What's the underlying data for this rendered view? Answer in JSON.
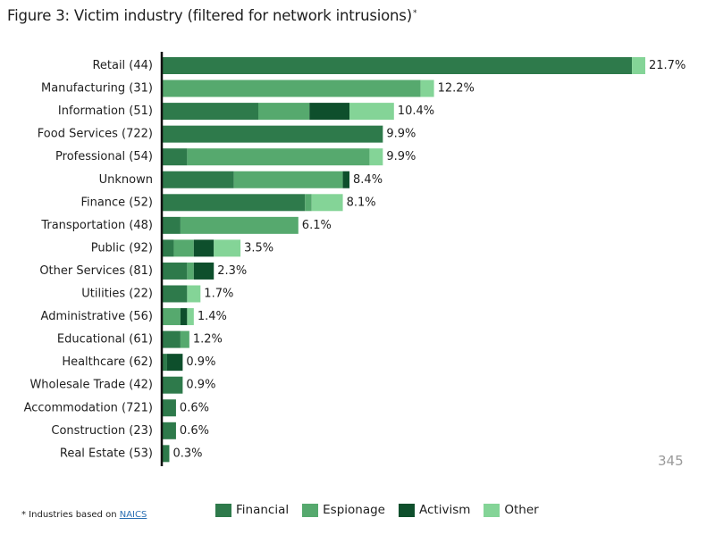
{
  "chart_data": {
    "type": "bar",
    "orientation": "horizontal",
    "stacked": true,
    "title": "Figure 3: Victim industry (filtered for network intrusions)",
    "title_marker": "*",
    "xlabel": "",
    "ylabel": "",
    "xlim": [
      0,
      21.7
    ],
    "grid": false,
    "legend_position": "bottom",
    "colors": {
      "Financial": "#2e7a4b",
      "Espionage": "#56a96e",
      "Activism": "#0e4f2c",
      "Other": "#84d497"
    },
    "categories": [
      "Retail (44)",
      "Manufacturing (31)",
      "Information (51)",
      "Food Services (722)",
      "Professional (54)",
      "Unknown",
      "Finance (52)",
      "Transportation (48)",
      "Public (92)",
      "Other Services (81)",
      "Utilities (22)",
      "Administrative (56)",
      "Educational (61)",
      "Healthcare (62)",
      "Wholesale Trade (42)",
      "Accommodation (721)",
      "Construction (23)",
      "Real Estate (53)"
    ],
    "totals": [
      21.7,
      12.2,
      10.4,
      9.9,
      9.9,
      8.4,
      8.1,
      6.1,
      3.5,
      2.3,
      1.7,
      1.4,
      1.2,
      0.9,
      0.9,
      0.6,
      0.6,
      0.3
    ],
    "total_labels": [
      "21.7%",
      "12.2%",
      "10.4%",
      "9.9%",
      "9.9%",
      "8.4%",
      "8.1%",
      "6.1%",
      "3.5%",
      "2.3%",
      "1.7%",
      "1.4%",
      "1.2%",
      "0.9%",
      "0.9%",
      "0.6%",
      "0.6%",
      "0.3%"
    ],
    "series": [
      {
        "name": "Financial",
        "values": [
          21.1,
          0.0,
          4.3,
          9.9,
          1.1,
          3.2,
          6.4,
          0.8,
          0.5,
          1.1,
          1.1,
          0.0,
          0.8,
          0.2,
          0.9,
          0.6,
          0.6,
          0.3
        ]
      },
      {
        "name": "Espionage",
        "values": [
          0.0,
          11.6,
          2.3,
          0.0,
          8.2,
          4.9,
          0.3,
          5.3,
          0.9,
          0.3,
          0.0,
          0.8,
          0.4,
          0.0,
          0.0,
          0.0,
          0.0,
          0.0
        ]
      },
      {
        "name": "Activism",
        "values": [
          0.0,
          0.0,
          1.8,
          0.0,
          0.0,
          0.3,
          0.0,
          0.0,
          0.9,
          0.9,
          0.0,
          0.3,
          0.0,
          0.7,
          0.0,
          0.0,
          0.0,
          0.0
        ]
      },
      {
        "name": "Other",
        "values": [
          0.6,
          0.6,
          2.0,
          0.0,
          0.6,
          0.0,
          1.4,
          0.0,
          1.2,
          0.0,
          0.6,
          0.3,
          0.0,
          0.0,
          0.0,
          0.0,
          0.0,
          0.0
        ]
      }
    ]
  },
  "page_number": "345",
  "footnote": {
    "text": "* Industries based on ",
    "link": "NAICS"
  }
}
